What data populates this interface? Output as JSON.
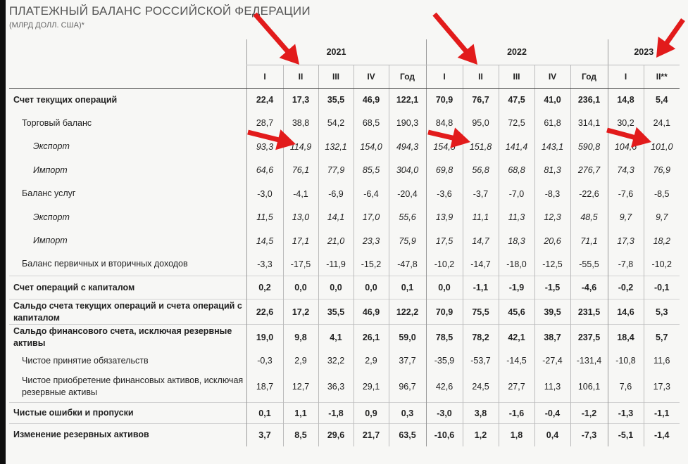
{
  "title": "ПЛАТЕЖНЫЙ БАЛАНС РОССИЙСКОЙ ФЕДЕРАЦИИ",
  "subtitle": "(МЛРД ДОЛЛ. США)*",
  "years": [
    "2021",
    "2022",
    "2023"
  ],
  "quarters": [
    "I",
    "II",
    "III",
    "IV",
    "Год",
    "I",
    "II",
    "III",
    "IV",
    "Год",
    "I",
    "II**"
  ],
  "rows": [
    {
      "label": "Счет текущих операций",
      "values": [
        "22,4",
        "17,3",
        "35,5",
        "46,9",
        "122,1",
        "70,9",
        "76,7",
        "47,5",
        "41,0",
        "236,1",
        "14,8",
        "5,4"
      ]
    },
    {
      "label": "Торговый баланс",
      "values": [
        "28,7",
        "38,8",
        "54,2",
        "68,5",
        "190,3",
        "84,8",
        "95,0",
        "72,5",
        "61,8",
        "314,1",
        "30,2",
        "24,1"
      ]
    },
    {
      "label": "Экспорт",
      "values": [
        "93,3",
        "114,9",
        "132,1",
        "154,0",
        "494,3",
        "154,5",
        "151,8",
        "141,4",
        "143,1",
        "590,8",
        "104,6",
        "101,0"
      ]
    },
    {
      "label": "Импорт",
      "values": [
        "64,6",
        "76,1",
        "77,9",
        "85,5",
        "304,0",
        "69,8",
        "56,8",
        "68,8",
        "81,3",
        "276,7",
        "74,3",
        "76,9"
      ]
    },
    {
      "label": "Баланс услуг",
      "values": [
        "-3,0",
        "-4,1",
        "-6,9",
        "-6,4",
        "-20,4",
        "-3,6",
        "-3,7",
        "-7,0",
        "-8,3",
        "-22,6",
        "-7,6",
        "-8,5"
      ]
    },
    {
      "label": "Экспорт",
      "values": [
        "11,5",
        "13,0",
        "14,1",
        "17,0",
        "55,6",
        "13,9",
        "11,1",
        "11,3",
        "12,3",
        "48,5",
        "9,7",
        "9,7"
      ]
    },
    {
      "label": "Импорт",
      "values": [
        "14,5",
        "17,1",
        "21,0",
        "23,3",
        "75,9",
        "17,5",
        "14,7",
        "18,3",
        "20,6",
        "71,1",
        "17,3",
        "18,2"
      ]
    },
    {
      "label": "Баланс первичных и вторичных доходов",
      "values": [
        "-3,3",
        "-17,5",
        "-11,9",
        "-15,2",
        "-47,8",
        "-10,2",
        "-14,7",
        "-18,0",
        "-12,5",
        "-55,5",
        "-7,8",
        "-10,2"
      ]
    },
    {
      "label": "Счет операций с капиталом",
      "values": [
        "0,2",
        "0,0",
        "0,0",
        "0,0",
        "0,1",
        "0,0",
        "-1,1",
        "-1,9",
        "-1,5",
        "-4,6",
        "-0,2",
        "-0,1"
      ]
    },
    {
      "label": "Сальдо счета текущих операций и счета операций с капиталом",
      "values": [
        "22,6",
        "17,2",
        "35,5",
        "46,9",
        "122,2",
        "70,9",
        "75,5",
        "45,6",
        "39,5",
        "231,5",
        "14,6",
        "5,3"
      ]
    },
    {
      "label": "Сальдо финансового счета, исключая резервные активы",
      "values": [
        "19,0",
        "9,8",
        "4,1",
        "26,1",
        "59,0",
        "78,5",
        "78,2",
        "42,1",
        "38,7",
        "237,5",
        "18,4",
        "5,7"
      ]
    },
    {
      "label": "Чистое принятие обязательств",
      "values": [
        "-0,3",
        "2,9",
        "32,2",
        "2,9",
        "37,7",
        "-35,9",
        "-53,7",
        "-14,5",
        "-27,4",
        "-131,4",
        "-10,8",
        "11,6"
      ]
    },
    {
      "label": "Чистое приобретение финансовых активов, исключая резервные активы",
      "values": [
        "18,7",
        "12,7",
        "36,3",
        "29,1",
        "96,7",
        "42,6",
        "24,5",
        "27,7",
        "11,3",
        "106,1",
        "7,6",
        "17,3"
      ]
    },
    {
      "label": "Чистые ошибки и пропуски",
      "values": [
        "0,1",
        "1,1",
        "-1,8",
        "0,9",
        "0,3",
        "-3,0",
        "3,8",
        "-1,6",
        "-0,4",
        "-1,2",
        "-1,3",
        "-1,1"
      ]
    },
    {
      "label": "Изменение резервных активов",
      "values": [
        "3,7",
        "8,5",
        "29,6",
        "21,7",
        "63,5",
        "-10,6",
        "1,2",
        "1,8",
        "0,4",
        "-7,3",
        "-5,1",
        "-1,4"
      ]
    }
  ],
  "colors": {
    "arrow": "#e21b1b",
    "background": "#f7f7f5",
    "frame": "#0e0e0e"
  }
}
